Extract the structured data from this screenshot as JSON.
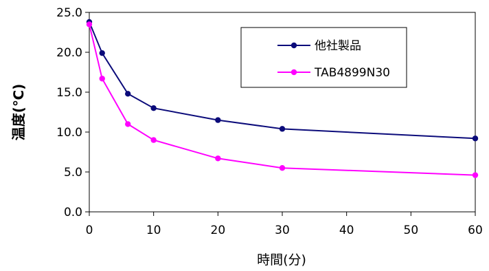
{
  "chart_data": {
    "type": "line",
    "title": "",
    "xlabel": "時間(分)",
    "ylabel": "温度(℃)",
    "xlim": [
      0,
      60
    ],
    "ylim": [
      0,
      25
    ],
    "x_ticks": [
      0,
      10,
      20,
      30,
      40,
      50,
      60
    ],
    "y_ticks": [
      0,
      5,
      10,
      15,
      20,
      25
    ],
    "y_tick_labels": [
      "0.0",
      "5.0",
      "10.0",
      "15.0",
      "20.0",
      "25.0"
    ],
    "grid": false,
    "legend": "top-right",
    "series": [
      {
        "name": "他社製品",
        "color": "#0b0b7a",
        "x": [
          0,
          2,
          6,
          10,
          20,
          30,
          60
        ],
        "y": [
          23.8,
          19.9,
          14.8,
          13.0,
          11.5,
          10.4,
          9.2
        ]
      },
      {
        "name": "TAB4899N30",
        "color": "#ff00ff",
        "x": [
          0,
          2,
          6,
          10,
          20,
          30,
          60
        ],
        "y": [
          23.5,
          16.7,
          11.0,
          9.0,
          6.7,
          5.5,
          4.6
        ]
      }
    ]
  }
}
